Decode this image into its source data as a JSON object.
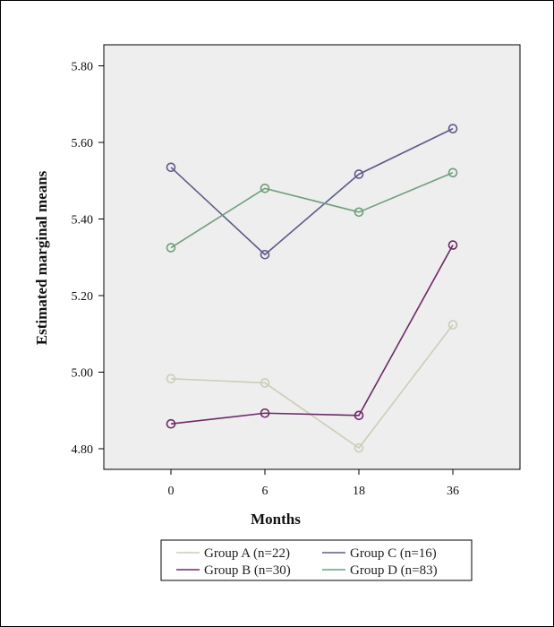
{
  "chart_data": {
    "type": "line",
    "xlabel": "Months",
    "ylabel": "Estimated marginal means",
    "categories": [
      "0",
      "6",
      "18",
      "36"
    ],
    "ylim": [
      4.74,
      5.9
    ],
    "yticks": [
      "4.80",
      "5.00",
      "5.20",
      "5.40",
      "5.60",
      "5.80"
    ],
    "ytick_values": [
      4.8,
      5.0,
      5.2,
      5.4,
      5.6,
      5.8
    ],
    "grid": false,
    "legend_position": "bottom",
    "marker": "open-circle",
    "series": [
      {
        "name": "Group A (n=22)",
        "color": "#c9cfb7",
        "values": [
          4.983,
          4.972,
          4.802,
          5.124
        ]
      },
      {
        "name": "Group B (n=30)",
        "color": "#6e2a68",
        "values": [
          4.865,
          4.893,
          4.887,
          5.332
        ]
      },
      {
        "name": "Group C (n=16)",
        "color": "#5e5a8c",
        "values": [
          5.535,
          5.307,
          5.517,
          5.636
        ]
      },
      {
        "name": "Group D (n=83)",
        "color": "#6d9f7b",
        "values": [
          5.325,
          5.48,
          5.418,
          5.521
        ]
      }
    ]
  }
}
